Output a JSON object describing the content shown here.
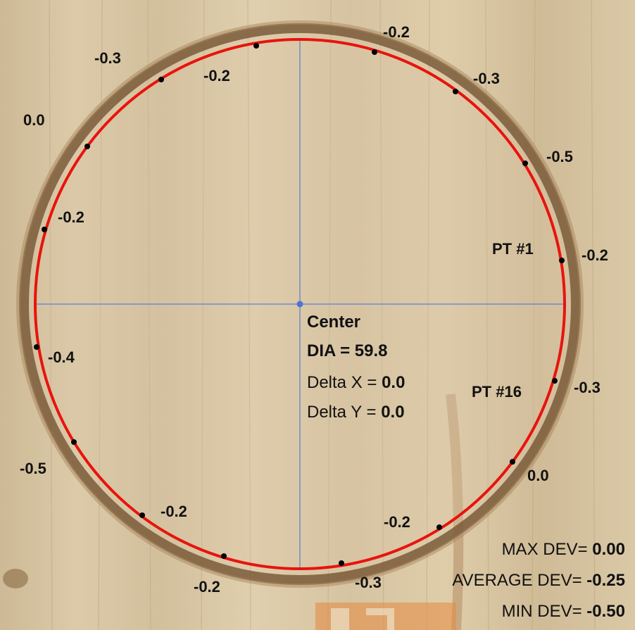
{
  "measurement": {
    "center_label": "Center",
    "dia_text": "DIA = 59.8",
    "delta_x_label": "Delta X = ",
    "delta_x_value": "0.0",
    "delta_y_label": "Delta Y = ",
    "delta_y_value": "0.0"
  },
  "point_labels": {
    "pt1": "PT #1",
    "pt16": "PT #16"
  },
  "deviations": [
    "-0.2",
    "-0.3",
    "-0.5",
    "-0.2",
    "-0.3",
    "0.0",
    "-0.2",
    "-0.3",
    "-0.2",
    "-0.2",
    "-0.5",
    "-0.4",
    "-0.2",
    "0.0",
    "-0.3",
    "-0.2"
  ],
  "stats": {
    "max_label": "MAX DEV= ",
    "max_value": "0.00",
    "avg_label": "AVERAGE DEV= ",
    "avg_value": "-0.25",
    "min_label": "MIN DEV= ",
    "min_value": "-0.50"
  },
  "colors": {
    "fit_circle": "#e8140c",
    "crosshair": "#5b7fd6",
    "wood": "#d8c7a8",
    "hole_edge": "#7a5a3a"
  }
}
